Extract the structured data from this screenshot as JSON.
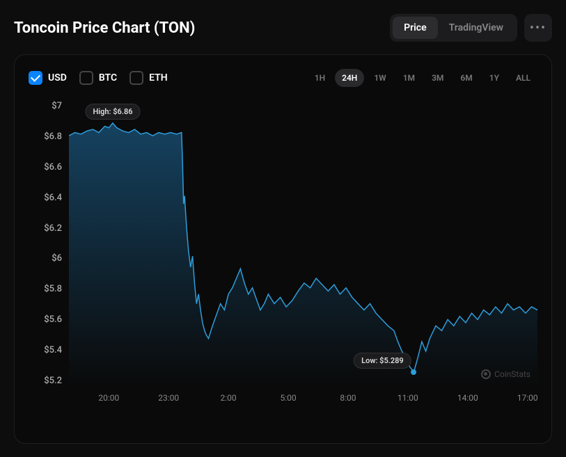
{
  "header": {
    "title": "Toncoin Price Chart (TON)",
    "tabs": [
      {
        "label": "Price",
        "active": true
      },
      {
        "label": "TradingView",
        "active": false
      }
    ],
    "more_label": "•••"
  },
  "currencies": [
    {
      "label": "USD",
      "checked": true
    },
    {
      "label": "BTC",
      "checked": false
    },
    {
      "label": "ETH",
      "checked": false
    }
  ],
  "ranges": [
    {
      "label": "1H",
      "active": false
    },
    {
      "label": "24H",
      "active": true
    },
    {
      "label": "1W",
      "active": false
    },
    {
      "label": "1M",
      "active": false
    },
    {
      "label": "3M",
      "active": false
    },
    {
      "label": "6M",
      "active": false
    },
    {
      "label": "1Y",
      "active": false
    },
    {
      "label": "ALL",
      "active": false
    }
  ],
  "chart": {
    "type": "area",
    "line_color": "#2e9ddb",
    "fill_top_color": "#1a5a85",
    "fill_bottom_color": "rgba(26,90,133,0)",
    "line_width": 1.5,
    "background_color": "#0a0a0a",
    "y_ticks": [
      "$7",
      "$6.8",
      "$6.6",
      "$6.4",
      "$6.2",
      "$6",
      "$5.8",
      "$5.6",
      "$5.4",
      "$5.2"
    ],
    "y_min": 5.2,
    "y_max": 7.0,
    "x_ticks": [
      {
        "label": "20:00",
        "t": 2
      },
      {
        "label": "23:00",
        "t": 5
      },
      {
        "label": "2:00",
        "t": 8
      },
      {
        "label": "5:00",
        "t": 11
      },
      {
        "label": "8:00",
        "t": 14
      },
      {
        "label": "11:00",
        "t": 17
      },
      {
        "label": "14:00",
        "t": 20
      },
      {
        "label": "17:00",
        "t": 23
      }
    ],
    "x_min": 0,
    "x_max": 23.5,
    "high_label": "High: $6.86",
    "high_point": {
      "t": 2.2,
      "v": 6.86
    },
    "low_label": "Low: $5.289",
    "low_point": {
      "t": 17.3,
      "v": 5.289
    },
    "watermark": "CoinStats",
    "series": [
      {
        "t": 0.0,
        "v": 6.78
      },
      {
        "t": 0.3,
        "v": 6.8
      },
      {
        "t": 0.6,
        "v": 6.79
      },
      {
        "t": 0.9,
        "v": 6.81
      },
      {
        "t": 1.2,
        "v": 6.82
      },
      {
        "t": 1.5,
        "v": 6.8
      },
      {
        "t": 1.8,
        "v": 6.84
      },
      {
        "t": 2.0,
        "v": 6.83
      },
      {
        "t": 2.2,
        "v": 6.86
      },
      {
        "t": 2.4,
        "v": 6.83
      },
      {
        "t": 2.7,
        "v": 6.81
      },
      {
        "t": 3.0,
        "v": 6.8
      },
      {
        "t": 3.3,
        "v": 6.82
      },
      {
        "t": 3.6,
        "v": 6.79
      },
      {
        "t": 3.9,
        "v": 6.8
      },
      {
        "t": 4.2,
        "v": 6.78
      },
      {
        "t": 4.5,
        "v": 6.8
      },
      {
        "t": 4.8,
        "v": 6.79
      },
      {
        "t": 5.1,
        "v": 6.8
      },
      {
        "t": 5.4,
        "v": 6.79
      },
      {
        "t": 5.65,
        "v": 6.8
      },
      {
        "t": 5.7,
        "v": 6.6
      },
      {
        "t": 5.75,
        "v": 6.35
      },
      {
        "t": 5.8,
        "v": 6.4
      },
      {
        "t": 5.9,
        "v": 6.2
      },
      {
        "t": 6.0,
        "v": 6.05
      },
      {
        "t": 6.1,
        "v": 5.95
      },
      {
        "t": 6.2,
        "v": 6.02
      },
      {
        "t": 6.3,
        "v": 5.85
      },
      {
        "t": 6.4,
        "v": 5.72
      },
      {
        "t": 6.5,
        "v": 5.78
      },
      {
        "t": 6.6,
        "v": 5.68
      },
      {
        "t": 6.7,
        "v": 5.6
      },
      {
        "t": 6.8,
        "v": 5.55
      },
      {
        "t": 6.9,
        "v": 5.52
      },
      {
        "t": 7.0,
        "v": 5.5
      },
      {
        "t": 7.2,
        "v": 5.58
      },
      {
        "t": 7.4,
        "v": 5.65
      },
      {
        "t": 7.6,
        "v": 5.72
      },
      {
        "t": 7.8,
        "v": 5.68
      },
      {
        "t": 8.0,
        "v": 5.78
      },
      {
        "t": 8.2,
        "v": 5.82
      },
      {
        "t": 8.4,
        "v": 5.88
      },
      {
        "t": 8.6,
        "v": 5.94
      },
      {
        "t": 8.8,
        "v": 5.85
      },
      {
        "t": 9.0,
        "v": 5.78
      },
      {
        "t": 9.2,
        "v": 5.82
      },
      {
        "t": 9.4,
        "v": 5.75
      },
      {
        "t": 9.6,
        "v": 5.68
      },
      {
        "t": 9.8,
        "v": 5.72
      },
      {
        "t": 10.0,
        "v": 5.78
      },
      {
        "t": 10.3,
        "v": 5.72
      },
      {
        "t": 10.6,
        "v": 5.76
      },
      {
        "t": 10.9,
        "v": 5.7
      },
      {
        "t": 11.2,
        "v": 5.74
      },
      {
        "t": 11.5,
        "v": 5.8
      },
      {
        "t": 11.8,
        "v": 5.85
      },
      {
        "t": 12.1,
        "v": 5.82
      },
      {
        "t": 12.4,
        "v": 5.88
      },
      {
        "t": 12.7,
        "v": 5.84
      },
      {
        "t": 13.0,
        "v": 5.8
      },
      {
        "t": 13.3,
        "v": 5.84
      },
      {
        "t": 13.6,
        "v": 5.78
      },
      {
        "t": 13.9,
        "v": 5.82
      },
      {
        "t": 14.2,
        "v": 5.76
      },
      {
        "t": 14.5,
        "v": 5.72
      },
      {
        "t": 14.8,
        "v": 5.68
      },
      {
        "t": 15.1,
        "v": 5.72
      },
      {
        "t": 15.4,
        "v": 5.66
      },
      {
        "t": 15.7,
        "v": 5.62
      },
      {
        "t": 16.0,
        "v": 5.58
      },
      {
        "t": 16.3,
        "v": 5.55
      },
      {
        "t": 16.5,
        "v": 5.48
      },
      {
        "t": 16.7,
        "v": 5.42
      },
      {
        "t": 16.9,
        "v": 5.38
      },
      {
        "t": 17.1,
        "v": 5.32
      },
      {
        "t": 17.3,
        "v": 5.289
      },
      {
        "t": 17.5,
        "v": 5.38
      },
      {
        "t": 17.7,
        "v": 5.48
      },
      {
        "t": 17.9,
        "v": 5.42
      },
      {
        "t": 18.1,
        "v": 5.5
      },
      {
        "t": 18.4,
        "v": 5.58
      },
      {
        "t": 18.7,
        "v": 5.55
      },
      {
        "t": 19.0,
        "v": 5.62
      },
      {
        "t": 19.3,
        "v": 5.58
      },
      {
        "t": 19.6,
        "v": 5.64
      },
      {
        "t": 19.9,
        "v": 5.6
      },
      {
        "t": 20.2,
        "v": 5.66
      },
      {
        "t": 20.5,
        "v": 5.62
      },
      {
        "t": 20.8,
        "v": 5.68
      },
      {
        "t": 21.1,
        "v": 5.65
      },
      {
        "t": 21.4,
        "v": 5.7
      },
      {
        "t": 21.7,
        "v": 5.66
      },
      {
        "t": 22.0,
        "v": 5.72
      },
      {
        "t": 22.3,
        "v": 5.68
      },
      {
        "t": 22.6,
        "v": 5.7
      },
      {
        "t": 22.9,
        "v": 5.66
      },
      {
        "t": 23.2,
        "v": 5.7
      },
      {
        "t": 23.5,
        "v": 5.68
      }
    ]
  }
}
